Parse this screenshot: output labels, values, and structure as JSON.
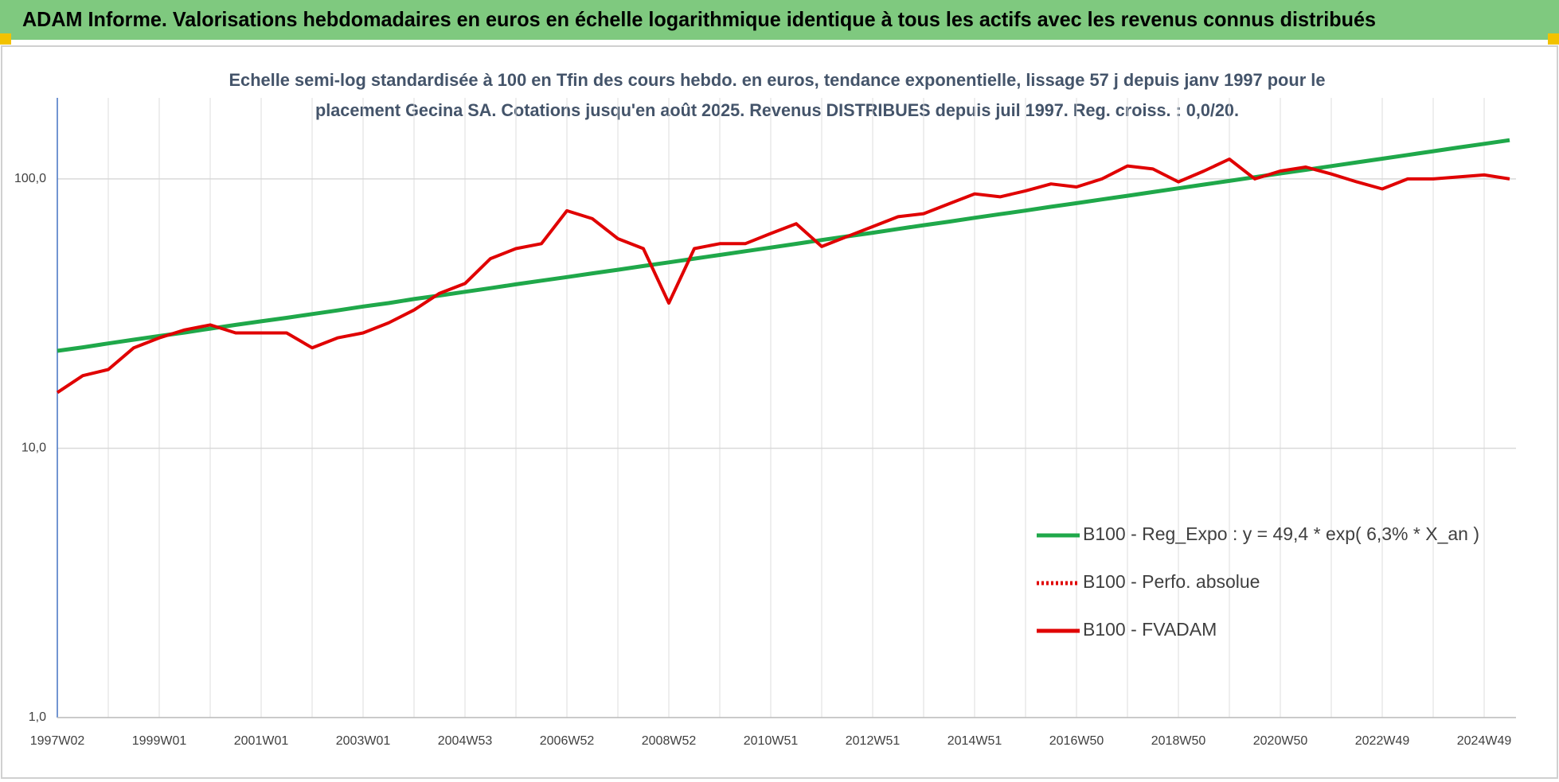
{
  "chart_data": {
    "type": "line",
    "title": "ADAM Informe. Valorisations hebdomadaires en euros en échelle logarithmique identique à tous les actifs avec les revenus connus distribués",
    "subtitle": [
      "Echelle semi-log standardisée à 100 en Tfin des cours hebdo. en euros, tendance exponentielle, lissage 57 j depuis janv 1997 pour le",
      "placement Gecina SA. Cotations jusqu'en août 2025. Revenus DISTRIBUES depuis juil 1997. Reg. croiss. : 0,0/20."
    ],
    "log_scale": true,
    "grid": true,
    "legend": "lower right",
    "ylim": [
      1,
      200
    ],
    "yticks": [
      {
        "value": 1,
        "label": "1,0"
      },
      {
        "value": 10,
        "label": "10,0"
      },
      {
        "value": 100,
        "label": "100,0"
      }
    ],
    "categories": [
      "1997W02",
      null,
      null,
      null,
      "1999W01",
      null,
      null,
      null,
      "2001W01",
      null,
      null,
      null,
      "2003W01",
      null,
      null,
      null,
      "2004W53",
      null,
      null,
      null,
      "2006W52",
      null,
      null,
      null,
      "2008W52",
      null,
      null,
      null,
      "2010W51",
      null,
      null,
      null,
      "2012W51",
      null,
      null,
      null,
      "2014W51",
      null,
      null,
      null,
      "2016W50",
      null,
      null,
      null,
      "2018W50",
      null,
      null,
      null,
      "2020W50",
      null,
      null,
      null,
      "2022W49",
      null,
      null,
      null,
      "2024W49",
      null
    ],
    "series": [
      {
        "name": "B100 - Reg_Expo : y = 49,4 * exp( 6,3% *  X_an )",
        "color": "#1fa84a",
        "style": "solid",
        "values": [
          23.0,
          23.7,
          24.5,
          25.3,
          26.1,
          26.9,
          27.8,
          28.7,
          29.6,
          30.5,
          31.5,
          32.5,
          33.6,
          34.6,
          35.8,
          36.9,
          38.1,
          39.3,
          40.6,
          41.9,
          43.2,
          44.6,
          46.0,
          47.5,
          49.0,
          50.6,
          52.2,
          53.9,
          55.6,
          57.4,
          59.3,
          61.2,
          63.1,
          65.2,
          67.3,
          69.4,
          71.7,
          74.0,
          76.3,
          78.8,
          81.3,
          83.9,
          86.6,
          89.4,
          92.3,
          95.3,
          98.3,
          101.5,
          104.8,
          108.1,
          111.6,
          115.2,
          118.9,
          122.7,
          126.7,
          130.8,
          135.0,
          139.3
        ]
      },
      {
        "name": "B100 - Perfo. absolue",
        "color": "#e00000",
        "style": "dotted",
        "values": [
          null,
          null,
          null,
          null,
          null,
          null,
          null,
          null,
          null,
          null,
          null,
          null,
          null,
          null,
          null,
          null,
          null,
          null,
          null,
          null,
          null,
          null,
          null,
          null,
          null,
          null,
          null,
          null,
          null,
          null,
          null,
          null,
          null,
          null,
          null,
          null,
          null,
          null,
          null,
          null,
          null,
          null,
          null,
          null,
          null,
          null,
          null,
          null,
          null,
          null,
          null,
          null,
          null,
          null,
          null,
          null,
          null,
          null
        ]
      },
      {
        "name": "B100 - FVADAM",
        "color": "#e00000",
        "style": "solid",
        "values": [
          16.1,
          18.6,
          19.6,
          23.6,
          25.7,
          27.5,
          28.7,
          26.8,
          26.8,
          26.8,
          23.6,
          25.7,
          26.8,
          29.2,
          32.6,
          37.6,
          40.9,
          50.6,
          55.1,
          57.5,
          76.2,
          71.2,
          60.0,
          55.1,
          34.6,
          55.1,
          57.5,
          57.5,
          62.7,
          68.2,
          56.1,
          61.1,
          66.5,
          72.4,
          74.3,
          80.9,
          88.0,
          85.8,
          90.3,
          95.8,
          93.4,
          100,
          111.7,
          108.9,
          97.5,
          107.0,
          118.5,
          100,
          107.0,
          110.7,
          104.3,
          97.5,
          91.8,
          100,
          100,
          101.7,
          103.5,
          100
        ]
      }
    ]
  }
}
